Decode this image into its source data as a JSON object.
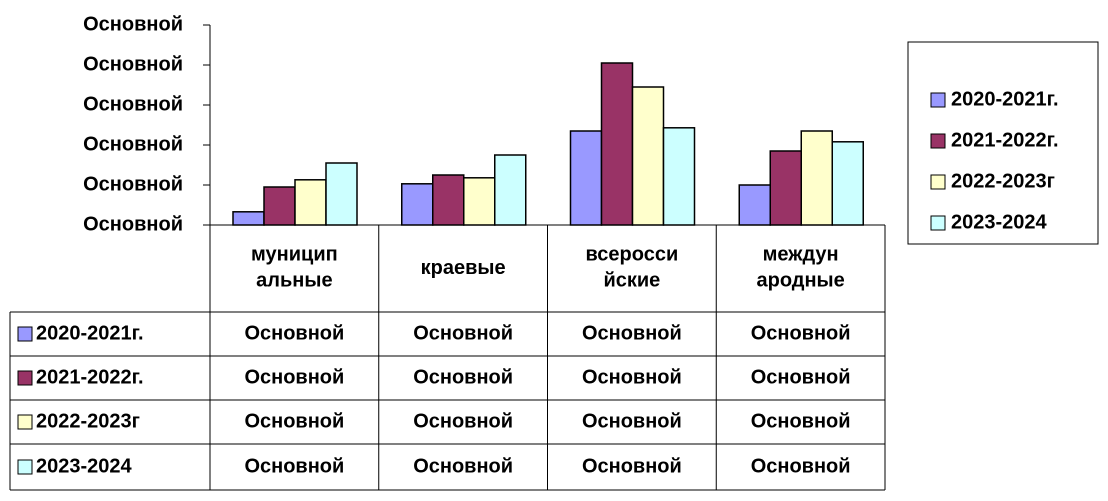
{
  "chart_data": {
    "type": "bar",
    "categories": [
      "муницип\nальные",
      "краевые",
      "всеросси\nйские",
      "междун\nародные"
    ],
    "series": [
      {
        "name": "2020-2021г.",
        "color": "#9999ff",
        "values": [
          0.33,
          1.03,
          2.35,
          1.0
        ],
        "value_labels": [
          "Основной",
          "Основной",
          "Основной",
          "Основной"
        ]
      },
      {
        "name": "2021-2022г.",
        "color": "#993366",
        "values": [
          0.95,
          1.25,
          4.05,
          1.85
        ],
        "value_labels": [
          "Основной",
          "Основной",
          "Основной",
          "Основной"
        ]
      },
      {
        "name": "2022-2023г",
        "color": "#ffffcc",
        "values": [
          1.13,
          1.18,
          3.45,
          2.35
        ],
        "value_labels": [
          "Основной",
          "Основной",
          "Основной",
          "Основной"
        ]
      },
      {
        "name": "2023-2024",
        "color": "#ccffff",
        "values": [
          1.55,
          1.75,
          2.43,
          2.08
        ],
        "value_labels": [
          "Основной",
          "Основной",
          "Основной",
          "Основной"
        ]
      }
    ],
    "ylim": [
      0,
      5
    ],
    "yticks": [
      {
        "value": 0,
        "label": "Основной"
      },
      {
        "value": 1,
        "label": "Основной"
      },
      {
        "value": 2,
        "label": "Основной"
      },
      {
        "value": 3,
        "label": "Основной"
      },
      {
        "value": 4,
        "label": "Основной"
      },
      {
        "value": 5,
        "label": "Основной"
      }
    ],
    "legend": "right"
  }
}
